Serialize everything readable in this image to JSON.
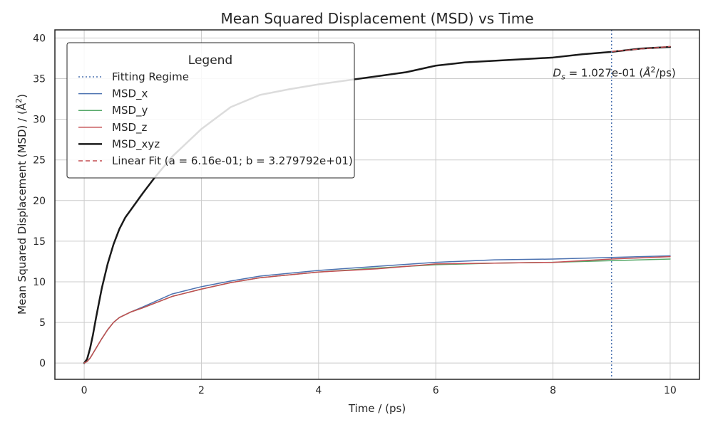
{
  "chart_data": {
    "type": "line",
    "title": "Mean Squared Displacement (MSD) vs Time",
    "xlabel": "Time / (ps)",
    "ylabel_text": "Mean Squared Displacement (MSD) / ",
    "ylabel_unit_base": "(Å",
    "ylabel_unit_exp": "2",
    "ylabel_unit_close": ")",
    "xlim": [
      -0.5,
      10.5
    ],
    "ylim": [
      -2,
      41
    ],
    "xticks": [
      0,
      2,
      4,
      6,
      8,
      10
    ],
    "yticks": [
      0,
      5,
      10,
      15,
      20,
      25,
      30,
      35,
      40
    ],
    "grid": true,
    "legend": {
      "title": "Legend",
      "placement": "upper-left",
      "entries": [
        {
          "label": "Fitting Regime",
          "color": "#4c72b0",
          "style": "dotted",
          "width": 1.5
        },
        {
          "label": "MSD_x",
          "color": "#4c72b0",
          "style": "solid",
          "width": 1.5
        },
        {
          "label": "MSD_y",
          "color": "#55a868",
          "style": "solid",
          "width": 1.5
        },
        {
          "label": "MSD_z",
          "color": "#c44e52",
          "style": "solid",
          "width": 1.5
        },
        {
          "label": "MSD_xyz",
          "color": "#1a1a1a",
          "style": "solid",
          "width": 2.5
        },
        {
          "label": "Linear Fit (a = 6.16e-01; b = 3.279792e+01)",
          "color": "#c44e52",
          "style": "dashed",
          "width": 1.5
        }
      ]
    },
    "fitting_regime_x": 9.0,
    "annotation": {
      "symbol": "D",
      "subscript": "s",
      "value_text": " = 1.027e-01 (",
      "unit_base": "Å",
      "unit_exp": "2",
      "unit_tail": "/ps)",
      "x": 8.0,
      "y": 35.0
    },
    "series": [
      {
        "name": "MSD_xyz",
        "color": "#1a1a1a",
        "width": 2.5,
        "x": [
          0,
          0.05,
          0.1,
          0.15,
          0.2,
          0.3,
          0.4,
          0.5,
          0.6,
          0.7,
          0.8,
          1.0,
          1.2,
          1.5,
          2.0,
          2.5,
          3.0,
          3.5,
          4.0,
          4.5,
          5.0,
          5.5,
          6.0,
          6.5,
          7.0,
          7.5,
          8.0,
          8.5,
          9.0,
          9.5,
          10.0
        ],
        "y": [
          0,
          0.5,
          1.8,
          3.5,
          5.5,
          9.2,
          12.2,
          14.6,
          16.5,
          17.9,
          18.9,
          20.9,
          22.8,
          25.4,
          28.8,
          31.5,
          33.0,
          33.7,
          34.3,
          34.8,
          35.3,
          35.8,
          36.6,
          37.0,
          37.2,
          37.4,
          37.6,
          38.0,
          38.3,
          38.7,
          38.9
        ]
      },
      {
        "name": "MSD_x",
        "color": "#4c72b0",
        "width": 1.5,
        "x": [
          0,
          0.05,
          0.1,
          0.2,
          0.3,
          0.4,
          0.5,
          0.6,
          0.8,
          1.0,
          1.5,
          2.0,
          2.5,
          3.0,
          4.0,
          5.0,
          6.0,
          7.0,
          8.0,
          9.0,
          10.0
        ],
        "y": [
          0,
          0.2,
          0.6,
          1.8,
          3.0,
          4.1,
          5.0,
          5.6,
          6.3,
          6.9,
          8.5,
          9.4,
          10.1,
          10.7,
          11.4,
          11.9,
          12.4,
          12.7,
          12.8,
          13.0,
          13.2
        ]
      },
      {
        "name": "MSD_y",
        "color": "#55a868",
        "width": 1.5,
        "x": [
          0,
          0.05,
          0.1,
          0.2,
          0.3,
          0.4,
          0.5,
          0.6,
          0.8,
          1.0,
          1.5,
          2.0,
          2.5,
          3.0,
          4.0,
          5.0,
          6.0,
          7.0,
          8.0,
          9.0,
          10.0
        ],
        "y": [
          0,
          0.2,
          0.6,
          1.8,
          3.0,
          4.1,
          5.0,
          5.6,
          6.3,
          6.8,
          8.2,
          9.1,
          9.9,
          10.5,
          11.2,
          11.7,
          12.1,
          12.3,
          12.4,
          12.6,
          12.8
        ]
      },
      {
        "name": "MSD_z",
        "color": "#c44e52",
        "width": 1.5,
        "x": [
          0,
          0.05,
          0.1,
          0.2,
          0.3,
          0.4,
          0.5,
          0.6,
          0.8,
          1.0,
          1.5,
          2.0,
          2.5,
          3.0,
          4.0,
          5.0,
          6.0,
          7.0,
          8.0,
          9.0,
          10.0
        ],
        "y": [
          0,
          0.2,
          0.6,
          1.8,
          3.0,
          4.1,
          5.0,
          5.6,
          6.3,
          6.8,
          8.2,
          9.1,
          9.9,
          10.5,
          11.2,
          11.6,
          12.2,
          12.3,
          12.4,
          12.8,
          13.1
        ]
      },
      {
        "name": "Linear Fit (a = 6.16e-01; b = 3.279792e+01)",
        "color": "#c44e52",
        "width": 1.5,
        "dashed": true,
        "x": [
          9.0,
          10.0
        ],
        "y": [
          38.34,
          38.96
        ]
      }
    ]
  }
}
